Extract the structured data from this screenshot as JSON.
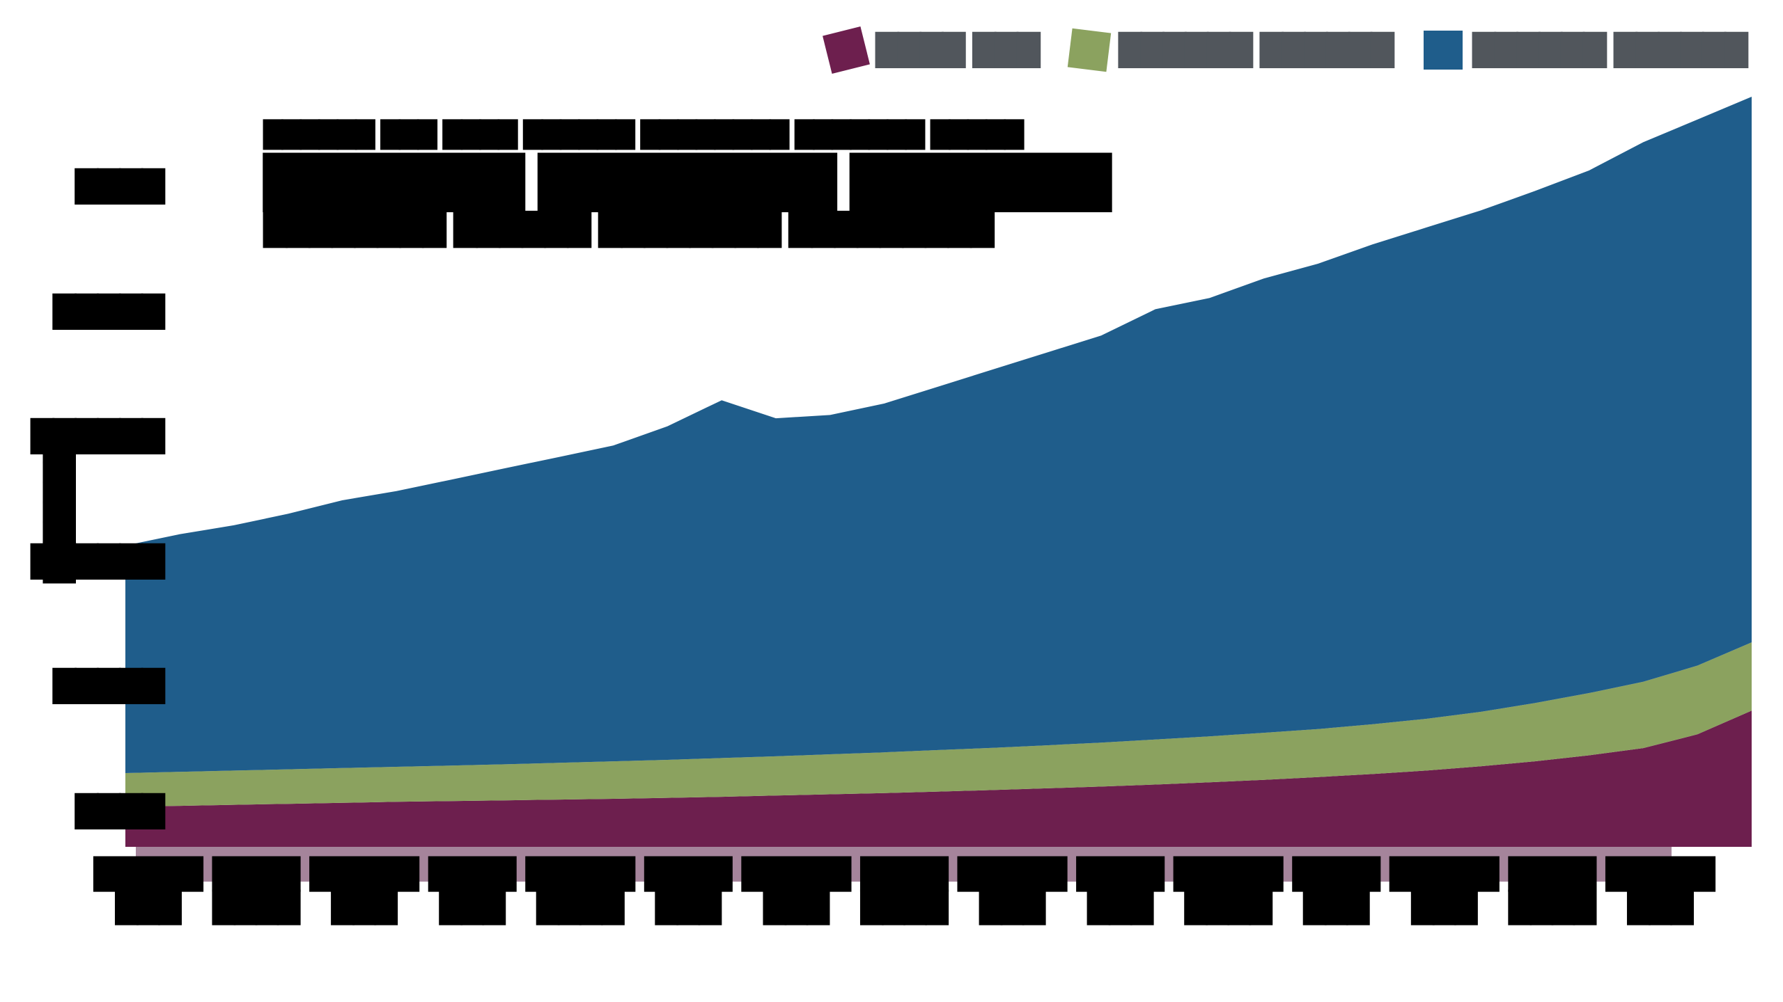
{
  "title": {
    "line1": "██████ ███ ████ ██████ ████████ ███████ █████",
    "line2": "███████ ████████ ███████",
    "line3": "████████ ██████ ████████ █████████"
  },
  "legend": {
    "position": "top-right",
    "label_color": "#51565c",
    "items": [
      {
        "name": "series-1",
        "label": "████ ███",
        "color": "#6d1f4e"
      },
      {
        "name": "series-2",
        "label": "██████ ██████",
        "color": "#8ba25f"
      },
      {
        "name": "series-3",
        "label": "██████ ██████",
        "color": "#1f5d8b"
      }
    ]
  },
  "y_axis": {
    "title": "████████",
    "tick_labels": [
      "████",
      "█████",
      "██████",
      "██████",
      "█████",
      "████"
    ]
  },
  "x_axis": {
    "tick_labels": [
      {
        "line1": "█████",
        "line2": "███"
      },
      {
        "line1": "████",
        "line2": "████"
      },
      {
        "line1": "█████",
        "line2": "███"
      },
      {
        "line1": "████",
        "line2": "███"
      },
      {
        "line1": "█████",
        "line2": "████"
      },
      {
        "line1": "████",
        "line2": "███"
      },
      {
        "line1": "█████",
        "line2": "███"
      },
      {
        "line1": "████",
        "line2": "████"
      },
      {
        "line1": "█████",
        "line2": "███"
      },
      {
        "line1": "████",
        "line2": "███"
      },
      {
        "line1": "█████",
        "line2": "████"
      },
      {
        "line1": "████",
        "line2": "███"
      },
      {
        "line1": "█████",
        "line2": "███"
      },
      {
        "line1": "████",
        "line2": "████"
      },
      {
        "line1": "█████",
        "line2": "███"
      }
    ]
  },
  "chart_data": {
    "type": "area",
    "stacked": true,
    "grid": false,
    "legend_position": "top-right",
    "ylim": [
      0,
      3000
    ],
    "n_points": 31,
    "footer_band_color": "#a5849b",
    "series": [
      {
        "name": "series-1",
        "color": "#6d1f4e",
        "values": [
          160,
          164,
          168,
          172,
          176,
          180,
          183,
          186,
          189,
          192,
          196,
          200,
          205,
          210,
          215,
          221,
          227,
          234,
          241,
          249,
          258,
          268,
          279,
          291,
          305,
          322,
          342,
          366,
          395,
          450,
          545
        ]
      },
      {
        "name": "series-2",
        "color": "#8ba25f",
        "values": [
          135,
          136,
          137,
          138,
          139,
          140,
          142,
          144,
          147,
          150,
          152,
          155,
          157,
          160,
          163,
          166,
          169,
          172,
          176,
          180,
          184,
          188,
          192,
          199,
          207,
          218,
          233,
          249,
          265,
          275,
          273
        ]
      },
      {
        "name": "series-3",
        "color": "#1f5d8b",
        "values": [
          910,
          950,
          981,
          1022,
          1071,
          1103,
          1143,
          1184,
          1223,
          1263,
          1334,
          1431,
          1352,
          1357,
          1395,
          1454,
          1513,
          1571,
          1628,
          1721,
          1753,
          1817,
          1861,
          1919,
          1965,
          2005,
          2048,
          2090,
          2158,
          2184,
          2182
        ]
      }
    ]
  }
}
